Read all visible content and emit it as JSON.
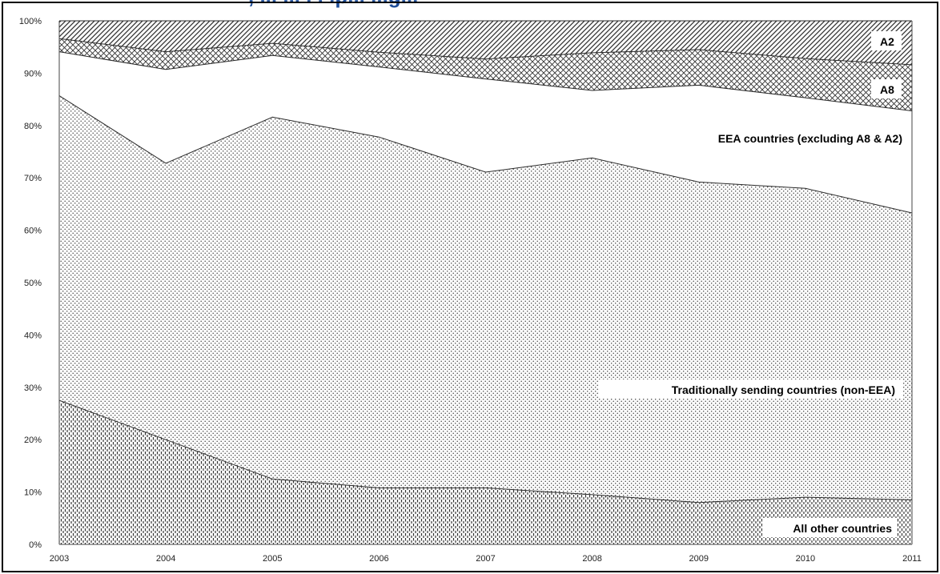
{
  "header": {
    "title_fragment": ", ... ... . . .p... ...g..."
  },
  "chart_data": {
    "type": "area",
    "stacked": true,
    "percent": true,
    "x": [
      2003,
      2004,
      2005,
      2006,
      2007,
      2008,
      2009,
      2010,
      2011
    ],
    "y_ticks": [
      "0%",
      "10%",
      "20%",
      "30%",
      "40%",
      "50%",
      "60%",
      "70%",
      "80%",
      "90%",
      "100%"
    ],
    "ylim": [
      0,
      100
    ],
    "series": [
      {
        "name": "All other countries",
        "values": [
          27.5,
          20,
          12.5,
          10.8,
          10.8,
          9.5,
          8,
          9,
          8.5
        ],
        "pattern": "vertical-dash"
      },
      {
        "name": "Traditionally sending countries (non-EEA)",
        "values": [
          58.2,
          52.8,
          69.1,
          67,
          60.3,
          64.3,
          61.2,
          59,
          54.8
        ],
        "pattern": "dots"
      },
      {
        "name": "EEA countries (excluding A8 & A2)",
        "values": [
          8.4,
          17.9,
          11.8,
          13.4,
          17.8,
          12.9,
          18.5,
          17.3,
          19.5
        ],
        "pattern": "none"
      },
      {
        "name": "A8",
        "values": [
          2.5,
          3.4,
          2.3,
          2.8,
          3.8,
          7.2,
          6.8,
          7.5,
          8.8
        ],
        "pattern": "crosshatch"
      },
      {
        "name": "A2",
        "values": [
          3.4,
          5.9,
          4.3,
          6,
          7.3,
          6.1,
          5.5,
          7.2,
          8.4
        ],
        "pattern": "diagonal"
      }
    ],
    "grid": false,
    "colors": {
      "stroke": "#2a2a2a",
      "title": "#1f4e9a",
      "border": "#000000"
    }
  }
}
